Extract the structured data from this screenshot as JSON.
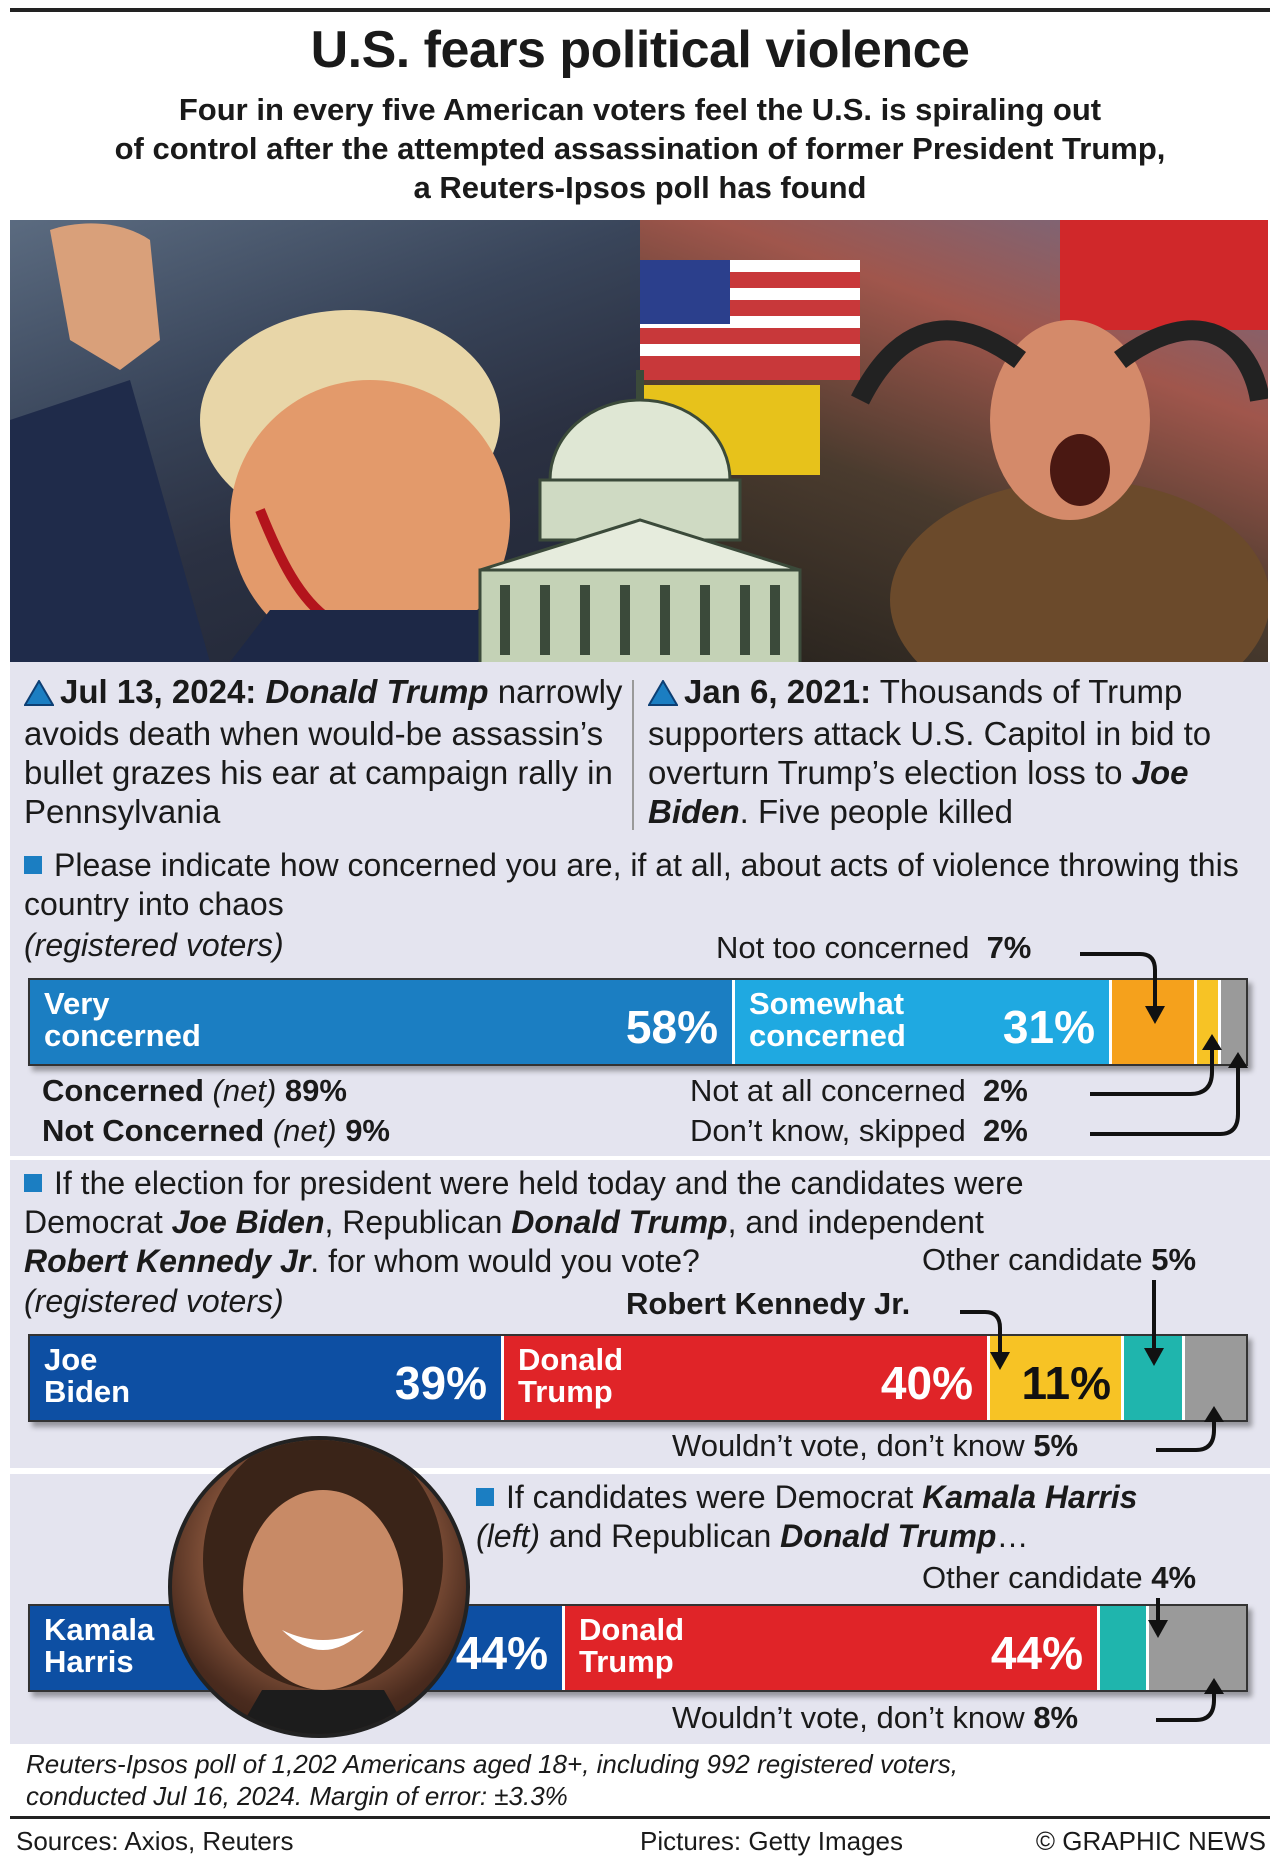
{
  "header": {
    "title": "U.S. fears political violence",
    "subtitle_l1": "Four in every five American voters feel the U.S. is spiraling out",
    "subtitle_l2": "of control after the attempted assassination of former President Trump,",
    "subtitle_l3": "a Reuters-Ipsos poll has found"
  },
  "captions": {
    "left_date": "Jul 13, 2024:",
    "left_name": "Donald Trump",
    "left_text": "narrowly avoids death when would-be assassin’s bullet grazes his ear at campaign rally in Pennsylvania",
    "right_date": "Jan 6, 2021:",
    "right_text": "Thousands of Trump supporters attack U.S. Capitol in bid to overturn Trump’s election loss to",
    "right_name": "Joe Biden",
    "right_tail": ". Five people killed"
  },
  "q1": {
    "question": "Please indicate how concerned you are, if at all, about acts of violence throwing this country into chaos",
    "note": "(registered voters)",
    "net_concerned_label": "Concerned",
    "net_concerned_paren": "(net)",
    "net_concerned_val": "89%",
    "net_not_label": "Not Concerned",
    "net_not_paren": "(net)",
    "net_not_val": "9%",
    "very_l1": "Very",
    "very_l2": "concerned",
    "very_pct": "58%",
    "some_l1": "Somewhat",
    "some_l2": "concerned",
    "some_pct": "31%",
    "not_too_label": "Not too concerned",
    "not_too_pct": "7%",
    "not_at_all_label": "Not at all concerned",
    "not_at_all_pct": "2%",
    "dont_know_label": "Don’t know, skipped",
    "dont_know_pct": "2%"
  },
  "q2": {
    "q_a": "If the election for president were held today and the candidates were",
    "q_b1": "Democrat ",
    "q_b2": "Joe Biden",
    "q_b3": ", Republican ",
    "q_b4": "Donald Trump",
    "q_b5": ", and independent",
    "q_c1": "Robert Kennedy Jr",
    "q_c2": ". for whom would you vote?",
    "note": "(registered voters)",
    "biden_l1": "Joe",
    "biden_l2": "Biden",
    "biden_pct": "39%",
    "trump_l1": "Donald",
    "trump_l2": "Trump",
    "trump_pct": "40%",
    "rfk_label": "Robert Kennedy Jr.",
    "rfk_pct": "11%",
    "other_label": "Other candidate",
    "other_pct": "5%",
    "wouldnt_label": "Wouldn’t vote, don’t know",
    "wouldnt_pct": "5%"
  },
  "q3": {
    "q_a1": "If candidates were Democrat ",
    "q_a2": "Kamala Harris",
    "q_b1": "(left)",
    "q_b2": " and Republican ",
    "q_b3": "Donald Trump",
    "q_b4": "…",
    "harris_l1": "Kamala",
    "harris_l2": "Harris",
    "harris_pct": "44%",
    "trump_l1": "Donald",
    "trump_l2": "Trump",
    "trump_pct": "44%",
    "other_label": "Other candidate",
    "other_pct": "4%",
    "wouldnt_label": "Wouldn’t vote, don’t know",
    "wouldnt_pct": "8%"
  },
  "footer": {
    "note_l1": "Reuters-Ipsos poll of 1,202 Americans aged 18+, including 992 registered voters,",
    "note_l2": "conducted Jul 16, 2024. Margin of error: ±3.3%",
    "sources": "Sources: Axios, Reuters",
    "pictures": "Pictures: Getty Images",
    "credit": "© GRAPHIC NEWS"
  },
  "colors": {
    "biden_blue": "#0d4fa3",
    "very_blue": "#1b7ec2",
    "some_cyan": "#1fa9e1",
    "orange": "#f5a11c",
    "yellow": "#f7c325",
    "gray": "#9a9a9a",
    "trump_red": "#e02428",
    "teal": "#1fb5ad"
  },
  "chart_data": [
    {
      "type": "bar",
      "title": "Please indicate how concerned you are, if at all, about acts of violence throwing this country into chaos",
      "categories": [
        "Very concerned",
        "Somewhat concerned",
        "Not too concerned",
        "Not at all concerned",
        "Don’t know, skipped"
      ],
      "values": [
        58,
        31,
        7,
        2,
        2
      ]
    },
    {
      "type": "bar",
      "title": "If the election for president were held today ... for whom would you vote?",
      "categories": [
        "Joe Biden",
        "Donald Trump",
        "Robert Kennedy Jr.",
        "Other candidate",
        "Wouldn’t vote, don’t know"
      ],
      "values": [
        39,
        40,
        11,
        5,
        5
      ]
    },
    {
      "type": "bar",
      "title": "If candidates were Democrat Kamala Harris (left) and Republican Donald Trump…",
      "categories": [
        "Kamala Harris",
        "Donald Trump",
        "Other candidate",
        "Wouldn’t vote, don’t know"
      ],
      "values": [
        44,
        44,
        4,
        8
      ]
    }
  ]
}
